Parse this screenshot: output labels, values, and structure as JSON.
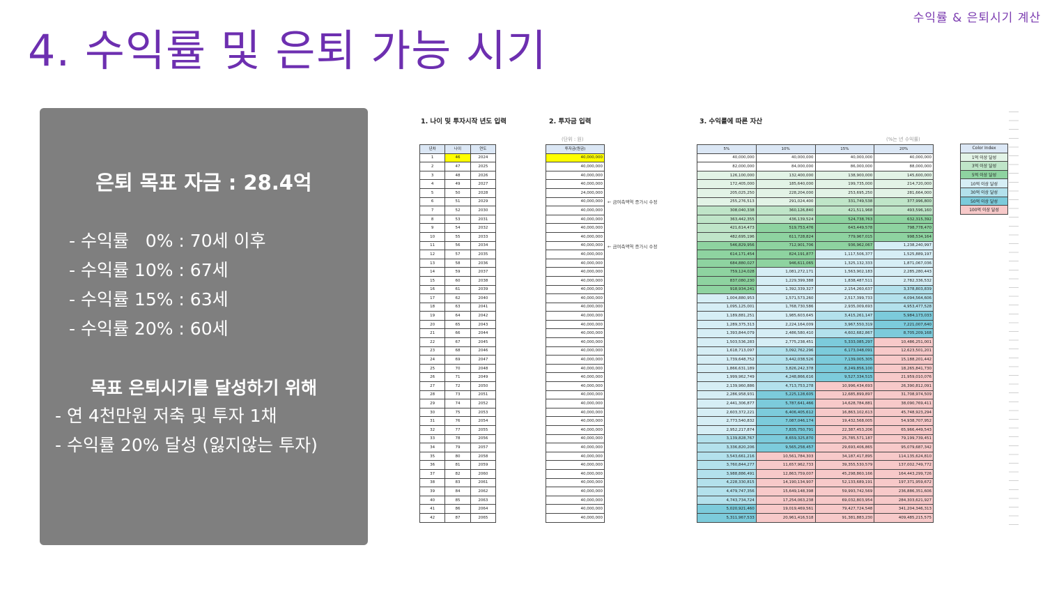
{
  "header": {
    "corner_label": "수익률 & 은퇴시기 계산",
    "title": "4. 수익률 및 은퇴 가능 시기"
  },
  "summary": {
    "goal": "은퇴 목표 자금 : 28.4억",
    "rates": [
      "- 수익률   0% : 70세 이후",
      "- 수익률 10% : 67세",
      "- 수익률 15% : 63세",
      "- 수익률 20% : 60세"
    ],
    "section_title": "목표 은퇴시기를 달성하기 위해",
    "actions": [
      "- 연 4천만원 저축 및 투자 1채",
      "- 수익률 20% 달성 (잃지않는 투자)"
    ]
  },
  "sheet": {
    "section1_title": "1. 나이 및 투자시작 년도 입력",
    "section2_title": "2. 투자금 입력",
    "section3_title": "3. 수익률에 따른 자산",
    "unit_note": "(단위 : 원)",
    "rate_note": "(%는 년 수익률)",
    "note_text": "← 금여측액역 증가시 수정",
    "table1_headers": [
      "년차",
      "나이",
      "연도"
    ],
    "table2_header": "투자금(원금)",
    "table3_headers": [
      "5%",
      "10%",
      "15%",
      "20%"
    ],
    "highlight_color": "#ffff00",
    "rows": [
      {
        "n": "1",
        "age": "46",
        "year": "2024",
        "inv": "40,000,000",
        "v": [
          "40,000,000",
          "40,000,000",
          "40,000,000",
          "40,000,000"
        ]
      },
      {
        "n": "2",
        "age": "47",
        "year": "2025",
        "inv": "40,000,000",
        "v": [
          "82,000,000",
          "84,000,000",
          "86,000,000",
          "88,000,000"
        ]
      },
      {
        "n": "3",
        "age": "48",
        "year": "2026",
        "inv": "40,000,000",
        "v": "126,100,000|132,400,000|138,900,000|145,600,000"
      },
      {
        "n": "4",
        "age": "49",
        "year": "2027",
        "inv": "40,000,000",
        "v": "172,405,000|185,640,000|199,735,000|214,720,000"
      },
      {
        "n": "5",
        "age": "50",
        "year": "2028",
        "inv": "24,000,000",
        "v": "205,025,250|228,204,000|253,695,250|281,664,000"
      },
      {
        "n": "6",
        "age": "51",
        "year": "2029",
        "inv": "40,000,000",
        "v": "255,276,513|291,024,400|331,749,538|377,996,800"
      },
      {
        "n": "7",
        "age": "52",
        "year": "2030",
        "inv": "40,000,000",
        "v": "308,040,338|360,126,840|421,511,968|493,596,160"
      },
      {
        "n": "8",
        "age": "53",
        "year": "2031",
        "inv": "40,000,000",
        "v": "363,442,355|436,139,524|524,738,763|632,315,392"
      },
      {
        "n": "9",
        "age": "54",
        "year": "2032",
        "inv": "40,000,000",
        "v": "421,614,473|519,753,476|643,449,578|798,778,470"
      },
      {
        "n": "10",
        "age": "55",
        "year": "2033",
        "inv": "40,000,000",
        "v": "482,695,196|611,728,824|779,967,015|998,534,164"
      },
      {
        "n": "11",
        "age": "56",
        "year": "2034",
        "inv": "40,000,000",
        "v": "546,829,956|712,901,706|936,962,067|1,238,240,997"
      },
      {
        "n": "12",
        "age": "57",
        "year": "2035",
        "inv": "40,000,000",
        "v": "614,171,454|824,191,877|1,117,506,377|1,525,889,197"
      },
      {
        "n": "13",
        "age": "58",
        "year": "2036",
        "inv": "40,000,000",
        "v": "684,880,027|946,611,065|1,325,132,333|1,871,067,036"
      },
      {
        "n": "14",
        "age": "59",
        "year": "2037",
        "inv": "40,000,000",
        "v": "759,124,028|1,081,272,171|1,563,902,183|2,285,280,443"
      },
      {
        "n": "15",
        "age": "60",
        "year": "2038",
        "inv": "40,000,000",
        "v": "837,080,230|1,229,399,388|1,838,487,511|2,782,336,532"
      },
      {
        "n": "16",
        "age": "61",
        "year": "2039",
        "inv": "40,000,000",
        "v": "918,934,241|1,392,339,327|2,154,260,637|3,378,803,839"
      },
      {
        "n": "17",
        "age": "62",
        "year": "2040",
        "inv": "40,000,000",
        "v": "1,004,880,953|1,571,573,260|2,517,399,733|4,094,564,606"
      },
      {
        "n": "18",
        "age": "63",
        "year": "2041",
        "inv": "40,000,000",
        "v": "1,095,125,001|1,768,730,586|2,935,009,693|4,953,477,528"
      },
      {
        "n": "19",
        "age": "64",
        "year": "2042",
        "inv": "40,000,000",
        "v": "1,189,881,251|1,985,603,645|3,415,261,147|5,984,173,033"
      },
      {
        "n": "20",
        "age": "65",
        "year": "2043",
        "inv": "40,000,000",
        "v": "1,289,375,313|2,224,164,009|3,967,550,319|7,221,007,640"
      },
      {
        "n": "21",
        "age": "66",
        "year": "2044",
        "inv": "40,000,000",
        "v": "1,393,844,079|2,486,580,410|4,602,682,867|8,705,209,168"
      },
      {
        "n": "22",
        "age": "67",
        "year": "2045",
        "inv": "40,000,000",
        "v": "1,503,536,283|2,775,238,451|5,333,085,297|10,486,251,001"
      },
      {
        "n": "23",
        "age": "68",
        "year": "2046",
        "inv": "40,000,000",
        "v": "1,618,713,097|3,092,762,296|6,173,048,091|12,623,501,201"
      },
      {
        "n": "24",
        "age": "69",
        "year": "2047",
        "inv": "40,000,000",
        "v": "1,739,648,752|3,442,038,526|7,139,005,305|15,188,201,442"
      },
      {
        "n": "25",
        "age": "70",
        "year": "2048",
        "inv": "40,000,000",
        "v": "1,866,631,189|3,826,242,378|8,249,856,100|18,265,841,730"
      },
      {
        "n": "26",
        "age": "71",
        "year": "2049",
        "inv": "40,000,000",
        "v": "1,999,962,749|4,248,866,616|9,527,334,515|21,959,010,076"
      },
      {
        "n": "27",
        "age": "72",
        "year": "2050",
        "inv": "40,000,000",
        "v": "2,139,960,886|4,713,753,278|10,996,434,693|26,390,812,091"
      },
      {
        "n": "28",
        "age": "73",
        "year": "2051",
        "inv": "40,000,000",
        "v": "2,286,958,931|5,225,128,605|12,685,899,897|31,708,974,509"
      },
      {
        "n": "29",
        "age": "74",
        "year": "2052",
        "inv": "40,000,000",
        "v": "2,441,306,877|5,787,641,466|14,628,784,881|38,090,769,411"
      },
      {
        "n": "30",
        "age": "75",
        "year": "2053",
        "inv": "40,000,000",
        "v": "2,603,372,221|6,406,405,612|16,863,102,613|45,748,923,294"
      },
      {
        "n": "31",
        "age": "76",
        "year": "2054",
        "inv": "40,000,000",
        "v": "2,773,540,832|7,087,046,174|19,432,568,005|54,938,707,952"
      },
      {
        "n": "32",
        "age": "77",
        "year": "2055",
        "inv": "40,000,000",
        "v": "2,952,217,874|7,835,750,791|22,387,453,206|65,966,449,543"
      },
      {
        "n": "33",
        "age": "78",
        "year": "2056",
        "inv": "40,000,000",
        "v": "3,139,828,767|8,659,325,870|25,785,571,187|79,199,739,451"
      },
      {
        "n": "34",
        "age": "79",
        "year": "2057",
        "inv": "40,000,000",
        "v": "3,336,820,206|9,565,258,457|29,693,406,865|95,079,687,342"
      },
      {
        "n": "35",
        "age": "80",
        "year": "2058",
        "inv": "40,000,000",
        "v": "3,543,661,216|10,561,784,303|34,187,417,895|114,135,624,810"
      },
      {
        "n": "36",
        "age": "81",
        "year": "2059",
        "inv": "40,000,000",
        "v": "3,760,844,277|11,657,962,733|39,355,530,579|137,002,749,772"
      },
      {
        "n": "37",
        "age": "82",
        "year": "2060",
        "inv": "40,000,000",
        "v": "3,988,886,491|12,863,759,007|45,298,860,166|164,443,299,726"
      },
      {
        "n": "38",
        "age": "83",
        "year": "2061",
        "inv": "40,000,000",
        "v": "4,228,330,815|14,190,134,907|52,133,689,191|197,371,959,672"
      },
      {
        "n": "39",
        "age": "84",
        "year": "2062",
        "inv": "40,000,000",
        "v": "4,479,747,356|15,649,148,398|59,993,742,569|236,886,351,606"
      },
      {
        "n": "40",
        "age": "85",
        "year": "2063",
        "inv": "40,000,000",
        "v": "4,743,734,724|17,254,063,238|69,032,803,954|284,303,621,927"
      },
      {
        "n": "41",
        "age": "86",
        "year": "2064",
        "inv": "40,000,000",
        "v": "5,020,921,460|19,019,469,561|79,427,724,548|341,204,346,313"
      },
      {
        "n": "42",
        "age": "87",
        "year": "2065",
        "inv": "40,000,000",
        "v": "5,311,967,533|20,961,416,518|91,381,883,230|409,485,215,575"
      }
    ],
    "legend": {
      "title": "Color Index",
      "items": [
        {
          "label": "1억 이상 달성",
          "color": "#e2f3e6"
        },
        {
          "label": "3억 이상 달성",
          "color": "#bfe5c8"
        },
        {
          "label": "5억 이상 달성",
          "color": "#8ed3a0"
        },
        {
          "label": "10억 이상 달성",
          "color": "#d6eef5"
        },
        {
          "label": "30억 이상 달성",
          "color": "#b3e1ec"
        },
        {
          "label": "50억 이상 달성",
          "color": "#7ccbdb"
        },
        {
          "label": "100억 이상 달성",
          "color": "#f7c9c9"
        }
      ]
    }
  }
}
